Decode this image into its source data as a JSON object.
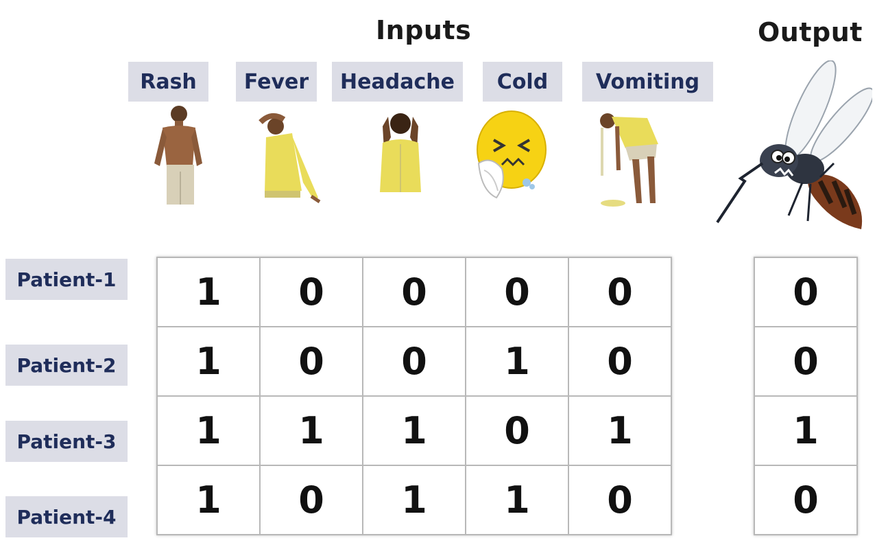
{
  "headers": {
    "inputs": "Inputs",
    "output": "Output"
  },
  "symptoms": [
    {
      "label": "Rash",
      "icon": "shirtless-man-icon"
    },
    {
      "label": "Fever",
      "icon": "fever-man-icon"
    },
    {
      "label": "Headache",
      "icon": "headache-man-icon"
    },
    {
      "label": "Cold",
      "icon": "sneezing-emoji-icon"
    },
    {
      "label": "Vomiting",
      "icon": "vomiting-man-icon"
    }
  ],
  "output_icon": "mosquito-icon",
  "patients": [
    {
      "label": "Patient-1",
      "inputs": [
        1,
        0,
        0,
        0,
        0
      ],
      "output": 0
    },
    {
      "label": "Patient-2",
      "inputs": [
        1,
        0,
        0,
        1,
        0
      ],
      "output": 0
    },
    {
      "label": "Patient-3",
      "inputs": [
        1,
        1,
        1,
        0,
        1
      ],
      "output": 1
    },
    {
      "label": "Patient-4",
      "inputs": [
        1,
        0,
        1,
        1,
        0
      ],
      "output": 0
    }
  ],
  "colors": {
    "label_bg": "#dcdde6",
    "label_text": "#1f2d5a",
    "shirt": "#e9dc5a",
    "skin": "#8a5a3a"
  }
}
